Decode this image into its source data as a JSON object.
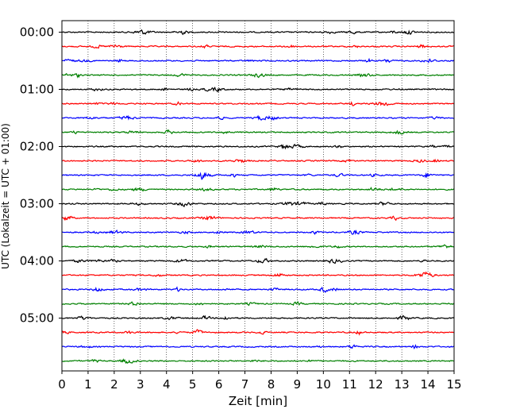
{
  "chart_data": {
    "type": "line",
    "title": "",
    "xlabel": "Zeit  [min]",
    "ylabel": "UTC (Lokalzeit = UTC + 01:00)",
    "xlim": [
      0,
      15
    ],
    "x_ticks": [
      "0",
      "1",
      "2",
      "3",
      "4",
      "5",
      "6",
      "7",
      "8",
      "9",
      "10",
      "11",
      "12",
      "13",
      "14",
      "15"
    ],
    "y_tick_labels": [
      "00:00",
      "01:00",
      "02:00",
      "03:00",
      "04:00",
      "05:00"
    ],
    "grid": "vertical dotted lines at each minute",
    "trace_colors": [
      "#000000",
      "#ff0000",
      "#0000ff",
      "#008000"
    ],
    "trace_count": 24,
    "trace_interval_minutes": 15,
    "first_trace": "00:00",
    "last_trace": "05:45"
  }
}
